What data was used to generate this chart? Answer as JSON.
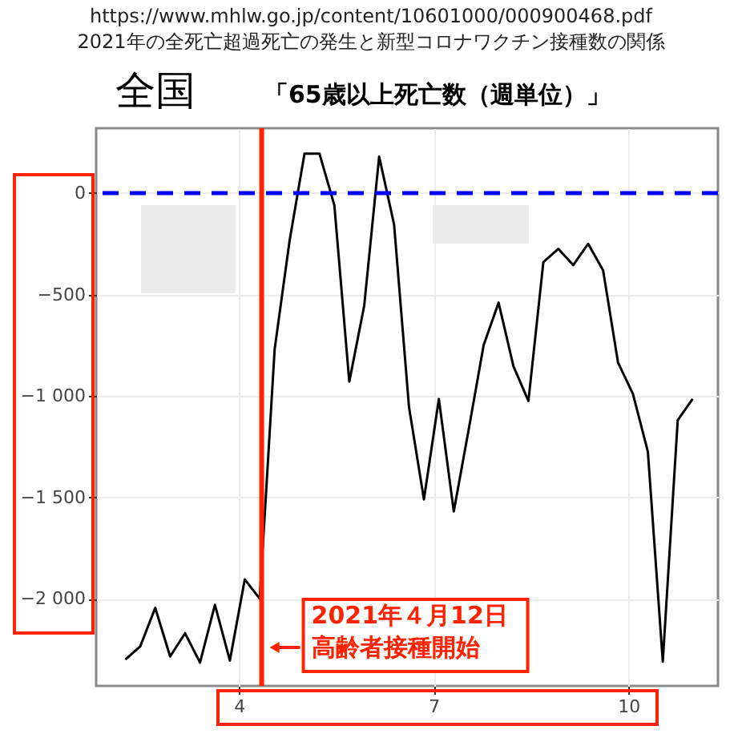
{
  "chart_data": {
    "type": "line",
    "title": "全国",
    "subtitle": "「65歳以上死亡数（週単位）」",
    "annotations": [
      "https://www.mhlw.go.jp/content/10601000/000900468.pdf",
      "2021年の全死亡超過死亡の発生と新型コロナワクチン接種数の関係"
    ],
    "x": [
      2.25,
      2.48,
      2.71,
      2.94,
      3.17,
      3.4,
      3.63,
      3.86,
      4.09,
      4.32,
      4.55,
      4.78,
      5.01,
      5.24,
      5.47,
      5.7,
      5.93,
      6.16,
      6.39,
      6.62,
      6.85,
      7.08,
      7.31,
      7.54,
      7.77,
      8.0,
      8.23,
      8.46,
      8.69,
      8.92,
      9.15,
      9.38,
      9.61,
      9.84,
      10.07,
      10.3,
      10.53,
      10.76,
      10.99
    ],
    "series": [
      {
        "color": "#000000",
        "values": [
          -2300,
          -2235,
          -2045,
          -2285,
          -2170,
          -2315,
          -2030,
          -2305,
          -1905,
          -2000,
          -770,
          -235,
          195,
          195,
          -60,
          -930,
          -555,
          180,
          -155,
          -1055,
          -1510,
          -1015,
          -1570,
          -1165,
          -750,
          -540,
          -855,
          -1025,
          -340,
          -275,
          -355,
          -250,
          -380,
          -835,
          -990,
          -1275,
          -2310,
          -1120,
          -1015
        ]
      }
    ],
    "xlim": [
      1.8,
      11.38
    ],
    "xticks": [
      4,
      7,
      10
    ],
    "ylim": [
      -2430,
      320
    ],
    "yticks": [
      {
        "value": -2000,
        "label": "−2 000"
      },
      {
        "value": -1500,
        "label": "−1 500"
      },
      {
        "value": -1000,
        "label": "−1 000"
      },
      {
        "value": -500,
        "label": "−500"
      },
      0
    ],
    "grid": true,
    "line_style": "solid",
    "marker": "none",
    "ref_lines": [
      {
        "axis": "y",
        "value": 0,
        "color": "#0000ff",
        "line_style": "dashed"
      },
      {
        "axis": "x",
        "value": 4.35,
        "color": "#ff2200",
        "line_style": "solid",
        "label": "2021年４月12日高齢者接種開始"
      }
    ]
  }
}
